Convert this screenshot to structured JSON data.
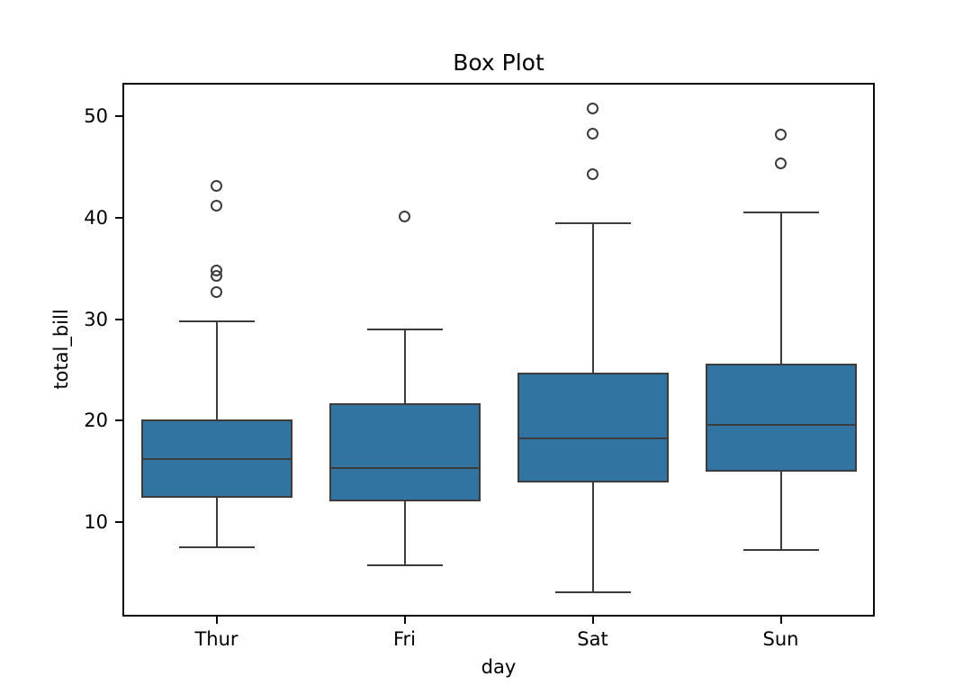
{
  "figure": {
    "background": "#ffffff"
  },
  "chart_data": {
    "type": "box",
    "title": "Box Plot",
    "xlabel": "day",
    "ylabel": "total_bill",
    "categories": [
      "Thur",
      "Fri",
      "Sat",
      "Sun"
    ],
    "yticks": [
      10,
      20,
      30,
      40,
      50
    ],
    "ylim": [
      0.7,
      53.3
    ],
    "grid": false,
    "legend": null,
    "boxes": [
      {
        "category": "Thur",
        "whisker_low": 7.51,
        "q1": 12.44,
        "median": 16.2,
        "q3": 20.16,
        "whisker_high": 29.8,
        "outliers": [
          32.68,
          34.3,
          34.83,
          41.19,
          43.11
        ]
      },
      {
        "category": "Fri",
        "whisker_low": 5.75,
        "q1": 12.09,
        "median": 15.38,
        "q3": 21.75,
        "whisker_high": 28.97,
        "outliers": [
          40.17
        ]
      },
      {
        "category": "Sat",
        "whisker_low": 3.07,
        "q1": 13.91,
        "median": 18.24,
        "q3": 24.74,
        "whisker_high": 39.42,
        "outliers": [
          44.3,
          48.33,
          50.81
        ]
      },
      {
        "category": "Sun",
        "whisker_low": 7.25,
        "q1": 14.99,
        "median": 19.63,
        "q3": 25.6,
        "whisker_high": 40.55,
        "outliers": [
          45.35,
          48.17
        ]
      }
    ],
    "colors": {
      "box_fill": "#3274a1",
      "box_edge": "#3c3c3c",
      "whisker": "#3c3c3c",
      "median": "#3c3c3c",
      "flier_edge": "#3c3c3c",
      "axis": "#0a0a0a",
      "text": "#000000"
    }
  }
}
